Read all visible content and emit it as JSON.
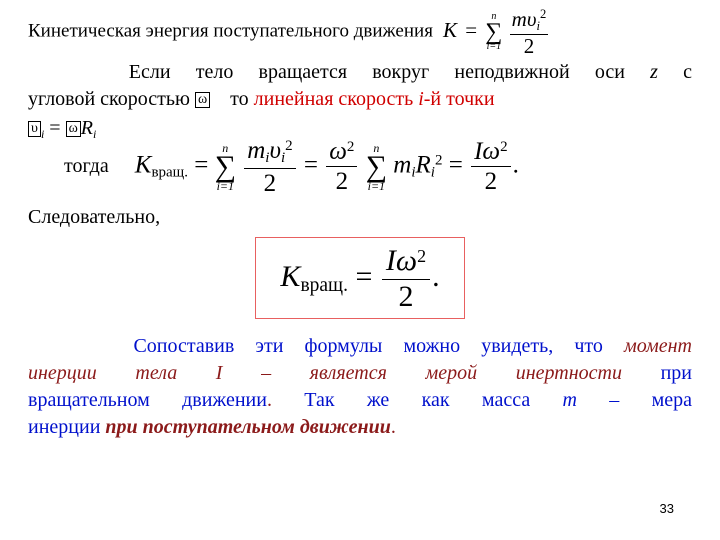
{
  "line1_text": "Кинетическая энергия поступательного движения",
  "eq_top": {
    "K": "K",
    "eq": "=",
    "n": "n",
    "i1": "i=1",
    "num": "mυ",
    "i": "i",
    "sq": "2",
    "den": "2"
  },
  "p2_a": "Если тело вращается вокруг неподвижной оси ",
  "p2_z": "z",
  "p2_b": " с",
  "p2_c": "угловой скоростью ",
  "p2_to": "то ",
  "p2_red": "линейная скорость ",
  "p2_red_i": "i",
  "p2_red2": "-й точки",
  "glyph": "ω",
  "eq_vR": {
    "v": "υ",
    "i": "i",
    "eq": " = ",
    "w": "ω",
    "R": "R"
  },
  "togda": "тогда",
  "eq_main": {
    "K": "K",
    "sub": "вращ.",
    "eq": " = ",
    "n": "n",
    "i1": "i=1",
    "f1_num_a": "m",
    "f1_num_b": "υ",
    "i": "i",
    "sq": "2",
    "den": "2",
    "w": "ω",
    "times": "",
    "R": "R",
    "I": "I",
    "dot": "."
  },
  "sled": "Следовательно,",
  "eq_box": {
    "K": "K",
    "sub": "вращ.",
    "eq": " = ",
    "I": "I",
    "w": "ω",
    "sq": "2",
    "den": "2",
    "dot": "."
  },
  "p3_a": "Сопоставив эти формулы можно увидеть, что ",
  "p3_red1": "момент",
  "p3_red2": "инерции тела I – является мерой инертности",
  "p3_b": " при",
  "p3_c": "вращательном движении",
  "p3_dot1": ".",
  "p3_d": " Так же как масса ",
  "p3_m": "m",
  "p3_e": " – мера",
  "p3_f": "инерции ",
  "p3_red3": "при поступательном движении",
  "p3_dot2": ".",
  "pagenum": "33",
  "colors": {
    "red": "#d00000",
    "blue": "#0010cc",
    "box": "#e86060"
  }
}
